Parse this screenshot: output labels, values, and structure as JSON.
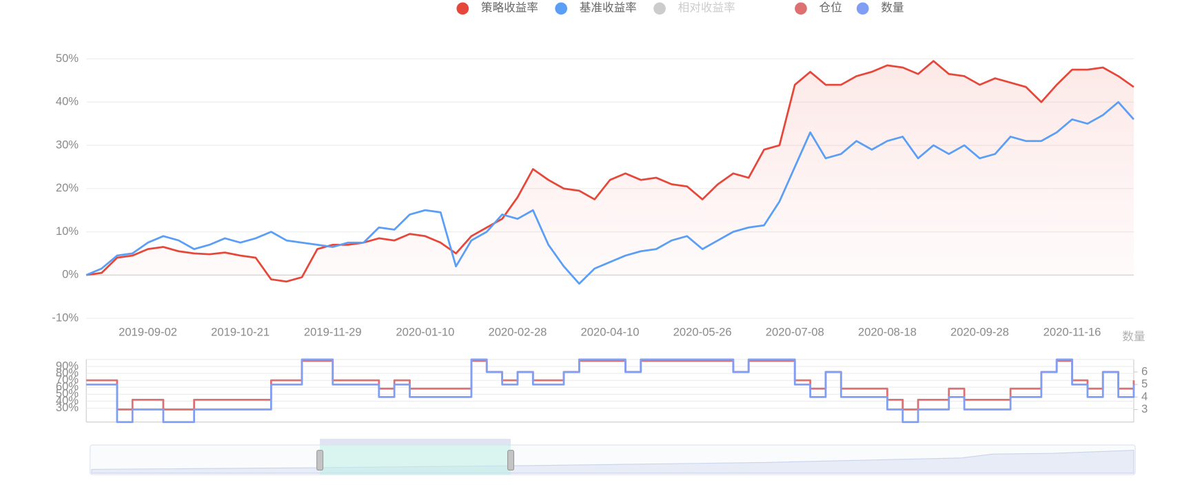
{
  "chart_data": [
    {
      "type": "line",
      "categories": [
        null,
        null,
        null,
        null,
        "2019-09-02",
        null,
        null,
        null,
        null,
        null,
        "2019-10-21",
        null,
        null,
        null,
        null,
        null,
        "2019-11-29",
        null,
        null,
        null,
        null,
        null,
        "2020-01-10",
        null,
        null,
        null,
        null,
        null,
        "2020-02-28",
        null,
        null,
        null,
        null,
        null,
        "2020-04-10",
        null,
        null,
        null,
        null,
        null,
        "2020-05-26",
        null,
        null,
        null,
        null,
        null,
        "2020-07-08",
        null,
        null,
        null,
        null,
        null,
        "2020-08-18",
        null,
        null,
        null,
        null,
        null,
        "2020-09-28",
        null,
        null,
        null,
        null,
        null,
        "2020-11-16",
        null,
        null,
        null,
        null
      ],
      "series": [
        {
          "name": "策略收益率",
          "color": "#e5483a",
          "area": true,
          "values": [
            0,
            0.5,
            4,
            4.5,
            6,
            6.5,
            5.5,
            5,
            4.8,
            5.2,
            4.5,
            4,
            -1,
            -1.5,
            -0.5,
            6,
            7,
            7,
            7.5,
            8.5,
            8,
            9.5,
            9,
            7.5,
            5,
            9,
            11,
            13,
            18,
            24.5,
            22,
            20,
            19.5,
            17.5,
            22,
            23.5,
            22,
            22.5,
            21,
            20.5,
            17.5,
            21,
            23.5,
            22.5,
            29,
            30,
            44,
            47,
            44,
            44,
            46,
            47,
            48.5,
            48,
            46.5,
            49.5,
            46.5,
            46,
            44,
            45.5,
            44.5,
            43.5,
            40,
            44,
            47.5,
            47.5,
            48,
            46,
            43.5
          ]
        },
        {
          "name": "基准收益率",
          "color": "#5b9ef5",
          "values": [
            0,
            1.5,
            4.5,
            5,
            7.5,
            9,
            8,
            6,
            7,
            8.5,
            7.5,
            8.5,
            10,
            8,
            7.5,
            7,
            6.5,
            7.5,
            7.5,
            11,
            10.5,
            14,
            15,
            14.5,
            2,
            8,
            10,
            14,
            13,
            15,
            7,
            2,
            -2,
            1.5,
            3,
            4.5,
            5.5,
            6,
            8,
            9,
            6,
            8,
            10,
            11,
            11.5,
            17,
            25,
            33,
            27,
            28,
            31,
            29,
            31,
            32,
            27,
            30,
            28,
            30,
            27,
            28,
            32,
            31,
            31,
            33,
            36,
            35,
            37,
            40,
            36
          ]
        },
        {
          "name": "相对收益率",
          "color": "#cccccc",
          "visible": false
        }
      ],
      "ylim": [
        -10,
        50
      ],
      "yticks": [
        {
          "value": -10,
          "label": "-10%"
        },
        {
          "value": 0,
          "label": "0%"
        },
        {
          "value": 10,
          "label": "10%"
        },
        {
          "value": 20,
          "label": "20%"
        },
        {
          "value": 30,
          "label": "30%"
        },
        {
          "value": 40,
          "label": "40%"
        },
        {
          "value": 50,
          "label": "50%"
        }
      ],
      "grid": true
    },
    {
      "type": "line",
      "step": true,
      "series": [
        {
          "name": "仓位",
          "color": "#dd7070",
          "values": [
            70,
            70,
            28,
            42,
            42,
            28,
            28,
            42,
            42,
            42,
            42,
            42,
            70,
            70,
            98,
            98,
            70,
            70,
            70,
            58,
            70,
            58,
            58,
            58,
            58,
            98,
            82,
            70,
            82,
            70,
            70,
            82,
            98,
            98,
            98,
            82,
            98,
            98,
            98,
            98,
            98,
            98,
            82,
            98,
            98,
            98,
            70,
            58,
            82,
            58,
            58,
            58,
            42,
            28,
            42,
            42,
            58,
            42,
            42,
            42,
            58,
            58,
            82,
            98,
            70,
            58,
            82,
            58,
            70
          ]
        },
        {
          "name": "数量",
          "color": "#7f9ef4",
          "axis": "y2",
          "values": [
            5,
            5,
            2,
            3,
            3,
            2,
            2,
            3,
            3,
            3,
            3,
            3,
            5,
            5,
            7,
            7,
            5,
            5,
            5,
            4,
            5,
            4,
            4,
            4,
            4,
            7,
            6,
            5,
            6,
            5,
            5,
            6,
            7,
            7,
            7,
            6,
            7,
            7,
            7,
            7,
            7,
            7,
            6,
            7,
            7,
            7,
            5,
            4,
            6,
            4,
            4,
            4,
            3,
            2,
            3,
            3,
            4,
            3,
            3,
            3,
            4,
            4,
            6,
            7,
            5,
            4,
            6,
            4,
            5
          ]
        }
      ],
      "ylim": [
        10,
        100
      ],
      "yticks": [
        {
          "value": 30,
          "label": "30%"
        },
        {
          "value": 40,
          "label": "40%"
        },
        {
          "value": 50,
          "label": "50%"
        },
        {
          "value": 60,
          "label": "60%"
        },
        {
          "value": 70,
          "label": "70%"
        },
        {
          "value": 80,
          "label": "80%"
        },
        {
          "value": 90,
          "label": "90%"
        }
      ],
      "y2label": "数量",
      "y2lim": [
        2,
        7
      ],
      "y2ticks": [
        3,
        4,
        5,
        6
      ],
      "grid": true
    }
  ]
}
